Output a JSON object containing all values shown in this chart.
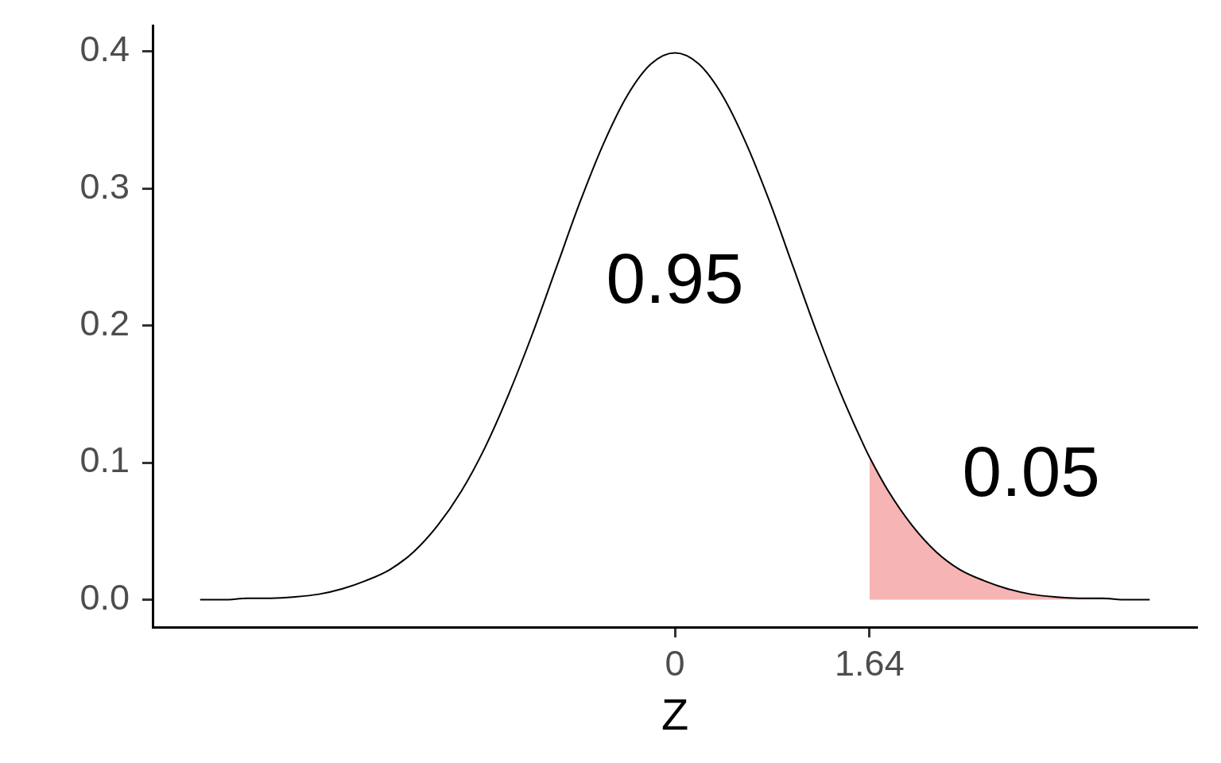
{
  "chart_data": {
    "type": "line",
    "xlabel": "Z",
    "xlim": [
      -4.4,
      4.4
    ],
    "xticks": [
      0,
      1.64
    ],
    "ylim": [
      -0.02,
      0.419
    ],
    "yticks": [
      {
        "value": 0,
        "label": "0.0"
      },
      0.1,
      0.2,
      0.3,
      0.4
    ],
    "grid": false,
    "legend": false,
    "marker": "none",
    "annotations": [
      "0.95",
      "0.05"
    ],
    "series": [
      {
        "color": "#000000",
        "x": [
          -4,
          -3.8,
          -3.6,
          -3.4,
          -3.2,
          -3,
          -2.8,
          -2.6,
          -2.4,
          -2.2,
          -2,
          -1.8,
          -1.6,
          -1.4,
          -1.2,
          -1,
          -0.8,
          -0.6,
          -0.4,
          -0.2,
          0,
          0.2,
          0.4,
          0.6,
          0.8,
          1,
          1.2,
          1.4,
          1.6,
          1.64,
          1.8,
          2,
          2.2,
          2.4,
          2.6,
          2.8,
          3,
          3.2,
          3.4,
          3.6,
          3.8,
          4
        ],
        "values": [
          0,
          0,
          0.001,
          0.001,
          0.002,
          0.004,
          0.008,
          0.014,
          0.022,
          0.035,
          0.054,
          0.079,
          0.111,
          0.15,
          0.194,
          0.242,
          0.29,
          0.333,
          0.368,
          0.391,
          0.399,
          0.391,
          0.368,
          0.333,
          0.29,
          0.242,
          0.194,
          0.15,
          0.111,
          0.104,
          0.079,
          0.054,
          0.035,
          0.022,
          0.014,
          0.008,
          0.004,
          0.002,
          0.001,
          0.001,
          0,
          0
        ]
      },
      {
        "type": "area",
        "color": "#f7b4b4",
        "x": [
          1.64,
          1.8,
          2,
          2.2,
          2.4,
          2.6,
          2.8,
          3,
          3.2,
          3.4,
          3.6,
          3.8,
          4
        ],
        "values": [
          0.104,
          0.079,
          0.054,
          0.035,
          0.022,
          0.014,
          0.008,
          0.004,
          0.002,
          0.001,
          0.001,
          0,
          0
        ]
      }
    ]
  }
}
